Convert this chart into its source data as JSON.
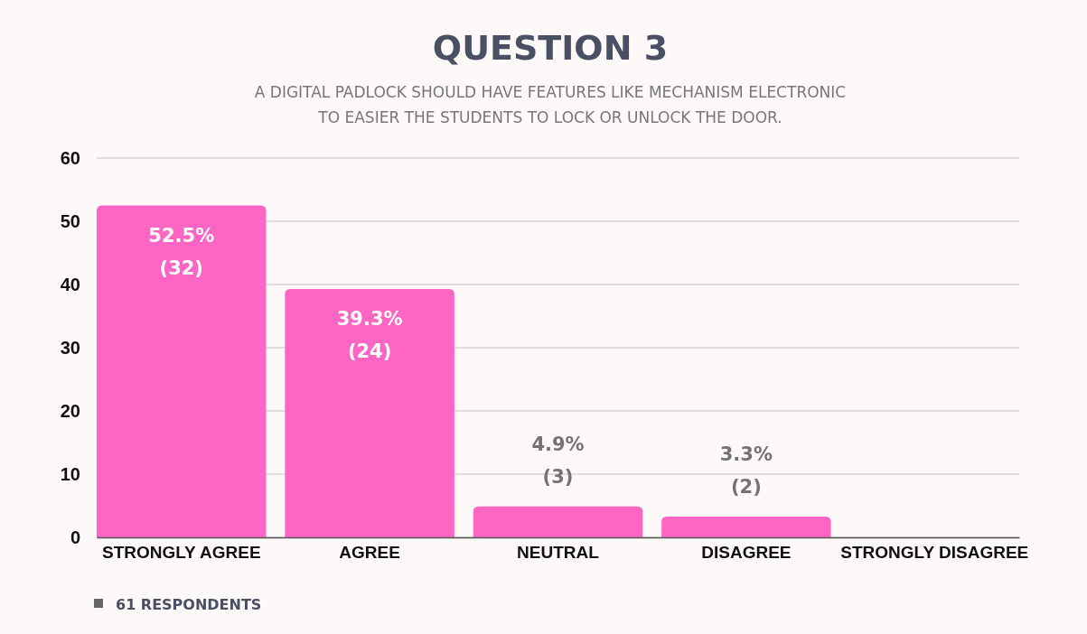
{
  "chart_data": {
    "type": "bar",
    "title": "QUESTION 3",
    "subtitle": "A DIGITAL PADLOCK SHOULD HAVE FEATURES LIKE MECHANISM ELECTRONIC\nTO EASIER THE STUDENTS TO LOCK OR UNLOCK THE DOOR.",
    "categories": [
      "STRONGLY AGREE",
      "AGREE",
      "NEUTRAL",
      "DISAGREE",
      "STRONGLY DISAGREE"
    ],
    "values": [
      52.5,
      39.3,
      4.9,
      3.3,
      0
    ],
    "value_labels": [
      "52.5%\n(32)",
      "39.3%\n(24)",
      "4.9%\n(3)",
      "3.3%\n(2)",
      null
    ],
    "color": "#ff66c4",
    "ylim": [
      0,
      60
    ],
    "yticks": [
      0,
      10,
      20,
      30,
      40,
      50,
      60
    ],
    "grid": "y",
    "annotations": [
      "61 RESPONDENTS"
    ]
  }
}
